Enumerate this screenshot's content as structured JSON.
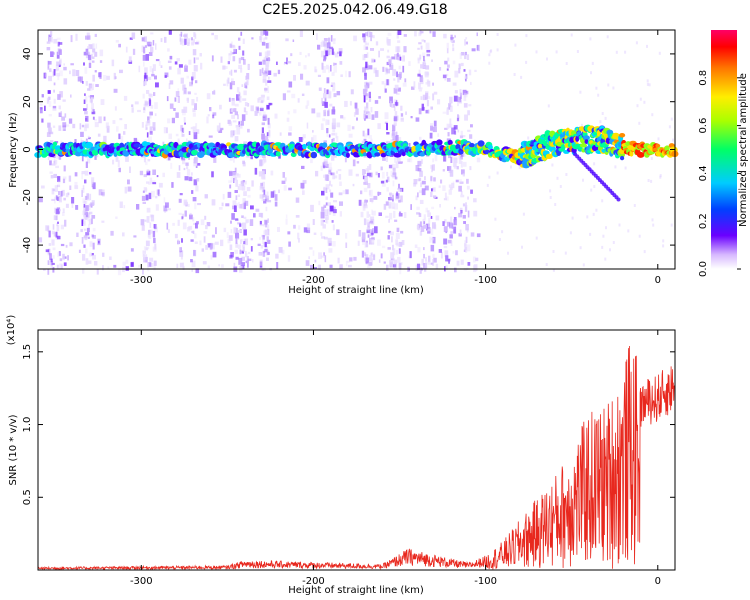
{
  "chart_data": [
    {
      "type": "heatmap",
      "title": "C2E5.2025.042.06.49.G18",
      "xlabel": "Height of straight line (km)",
      "ylabel": "Frequency (Hz)",
      "xlim": [
        -360,
        10
      ],
      "ylim": [
        -50,
        50
      ],
      "xticks": [
        -300,
        -200,
        -100,
        0
      ],
      "yticks": [
        -40,
        -20,
        0,
        20,
        40
      ],
      "colorbar": {
        "label": "Normalized spectral amplitude",
        "range": [
          0.0,
          1.0
        ],
        "ticks": [
          0.0,
          0.2,
          0.4,
          0.6,
          0.8
        ],
        "colormap": [
          "#ffffff",
          "#6a00ff",
          "#0033ff",
          "#00ccff",
          "#00ff66",
          "#aaff00",
          "#ffee00",
          "#ff7700",
          "#ff0000",
          "#ff0066"
        ]
      },
      "ridge": [
        {
          "x": -360,
          "y": 0
        },
        {
          "x": -300,
          "y": 0
        },
        {
          "x": -200,
          "y": 0
        },
        {
          "x": -150,
          "y": 0
        },
        {
          "x": -110,
          "y": 1
        },
        {
          "x": -100,
          "y": 0
        },
        {
          "x": -90,
          "y": -2
        },
        {
          "x": -80,
          "y": -3
        },
        {
          "x": -70,
          "y": 0
        },
        {
          "x": -60,
          "y": 3
        },
        {
          "x": -45,
          "y": 4
        },
        {
          "x": -30,
          "y": 4
        },
        {
          "x": -20,
          "y": 1
        },
        {
          "x": -10,
          "y": 0
        },
        {
          "x": 10,
          "y": 0
        }
      ]
    },
    {
      "type": "line",
      "xlabel": "Height of straight line (km)",
      "ylabel": "SNR (10 * v/v)",
      "yscale_label": "(x10⁴)",
      "xlim": [
        -360,
        10
      ],
      "ylim": [
        0,
        1.65
      ],
      "xticks": [
        -300,
        -200,
        -100,
        0
      ],
      "yticks": [
        0.5,
        1.0,
        1.5
      ],
      "color": "#e8281e",
      "envelope": [
        {
          "x": -360,
          "y": 0.02
        },
        {
          "x": -250,
          "y": 0.03
        },
        {
          "x": -240,
          "y": 0.07
        },
        {
          "x": -160,
          "y": 0.04
        },
        {
          "x": -145,
          "y": 0.15
        },
        {
          "x": -110,
          "y": 0.05
        },
        {
          "x": -100,
          "y": 0.1
        },
        {
          "x": -90,
          "y": 0.2
        },
        {
          "x": -80,
          "y": 0.35
        },
        {
          "x": -70,
          "y": 0.5
        },
        {
          "x": -60,
          "y": 0.65
        },
        {
          "x": -50,
          "y": 0.85
        },
        {
          "x": -40,
          "y": 1.1
        },
        {
          "x": -30,
          "y": 1.15
        },
        {
          "x": -20,
          "y": 1.4
        },
        {
          "x": -15,
          "y": 1.65
        },
        {
          "x": -10,
          "y": 1.3
        },
        {
          "x": 0,
          "y": 1.35
        },
        {
          "x": 10,
          "y": 1.45
        }
      ]
    }
  ]
}
